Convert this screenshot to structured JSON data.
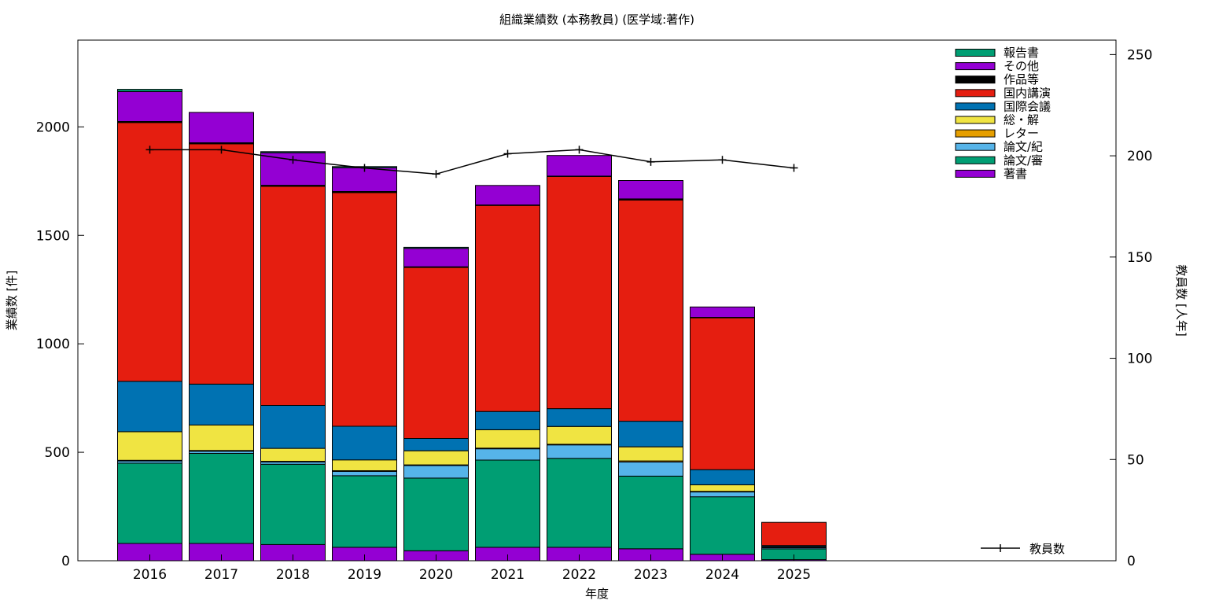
{
  "chart_data": {
    "type": "bar",
    "stacked": true,
    "title": "組織業績数 (本務教員) (医学域:著作)",
    "xlabel": "年度",
    "ylabel": "業績数 [件]",
    "y2label": "教員数 [人年]",
    "ylim": [
      0,
      2400
    ],
    "y2lim": [
      0,
      257.14
    ],
    "yticks": [
      "0",
      "500",
      "1000",
      "1500",
      "2000"
    ],
    "y2ticks": [
      "0",
      "50",
      "100",
      "150",
      "200",
      "250"
    ],
    "grid": false,
    "legend_position": "top-right",
    "categories": [
      "2016",
      "2017",
      "2018",
      "2019",
      "2020",
      "2021",
      "2022",
      "2023",
      "2024",
      "2025"
    ],
    "series": [
      {
        "name": "著書",
        "color": "#9400d3",
        "values": [
          80,
          80,
          75,
          62,
          46,
          62,
          62,
          55,
          30,
          5
        ]
      },
      {
        "name": "論文/審",
        "color": "#009e73",
        "values": [
          370,
          415,
          370,
          330,
          335,
          402,
          410,
          335,
          265,
          50
        ]
      },
      {
        "name": "論文/紀",
        "color": "#56b4e9",
        "values": [
          10,
          10,
          10,
          20,
          58,
          52,
          62,
          65,
          22,
          6
        ]
      },
      {
        "name": "レター",
        "color": "#e69f00",
        "values": [
          3,
          3,
          3,
          3,
          3,
          3,
          3,
          5,
          3,
          1
        ]
      },
      {
        "name": "総・解",
        "color": "#f0e442",
        "values": [
          132,
          118,
          60,
          50,
          65,
          85,
          82,
          65,
          30,
          3
        ]
      },
      {
        "name": "国際会議",
        "color": "#0072b2",
        "values": [
          232,
          188,
          198,
          155,
          57,
          84,
          82,
          118,
          70,
          5
        ]
      },
      {
        "name": "国内講演",
        "color": "#e51e10",
        "values": [
          1193,
          1108,
          1010,
          1077,
          788,
          950,
          1070,
          1020,
          700,
          107
        ]
      },
      {
        "name": "作品等",
        "color": "#000000",
        "values": [
          5,
          5,
          5,
          5,
          3,
          2,
          2,
          5,
          2,
          0
        ]
      },
      {
        "name": "その他",
        "color": "#9400d3",
        "values": [
          138,
          140,
          150,
          110,
          85,
          90,
          95,
          85,
          48,
          0
        ]
      },
      {
        "name": "報告書",
        "color": "#009e73",
        "values": [
          10,
          0,
          5,
          5,
          5,
          0,
          0,
          0,
          0,
          0
        ]
      }
    ],
    "line": {
      "name": "教員数",
      "color": "#000000",
      "axis": "right",
      "values": [
        203,
        203,
        198,
        194,
        191,
        201,
        203,
        197,
        198,
        194
      ]
    }
  }
}
